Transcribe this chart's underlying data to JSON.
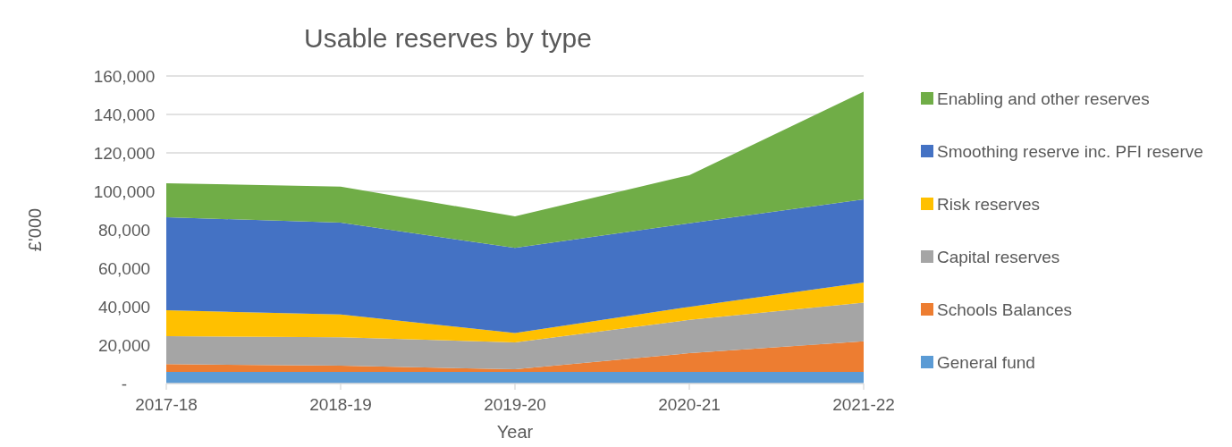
{
  "chart_data": {
    "type": "area",
    "stacked": true,
    "title": "Usable reserves by type",
    "xlabel": "Year",
    "ylabel": "£'000",
    "categories": [
      "2017-18",
      "2018-19",
      "2019-20",
      "2020-21",
      "2021-22"
    ],
    "series": [
      {
        "name": "General fund",
        "color": "#5b9bd5",
        "values": [
          6000,
          6000,
          6000,
          6000,
          6000
        ]
      },
      {
        "name": "Schools Balances",
        "color": "#ed7d31",
        "values": [
          4100,
          3300,
          1400,
          9800,
          16000
        ]
      },
      {
        "name": "Capital reserves",
        "color": "#a5a5a5",
        "values": [
          14500,
          14800,
          14000,
          17300,
          20100
        ]
      },
      {
        "name": "Risk reserves",
        "color": "#ffc000",
        "values": [
          13500,
          11800,
          4900,
          6800,
          10500
        ]
      },
      {
        "name": "Smoothing reserve inc. PFI reserve",
        "color": "#4472c4",
        "values": [
          48400,
          47800,
          44300,
          43500,
          43200
        ]
      },
      {
        "name": "Enabling and other reserves",
        "color": "#70ad47",
        "values": [
          17700,
          18800,
          16400,
          25000,
          56100
        ]
      }
    ],
    "ylim": [
      0,
      160000
    ],
    "yticks": [
      {
        "value": 0,
        "label": "-"
      },
      {
        "value": 20000,
        "label": "20,000"
      },
      {
        "value": 40000,
        "label": "40,000"
      },
      {
        "value": 60000,
        "label": "60,000"
      },
      {
        "value": 80000,
        "label": "80,000"
      },
      {
        "value": 100000,
        "label": "100,000"
      },
      {
        "value": 120000,
        "label": "120,000"
      },
      {
        "value": 140000,
        "label": "140,000"
      },
      {
        "value": 160000,
        "label": "160,000"
      }
    ],
    "grid": "y",
    "legend": "right"
  }
}
